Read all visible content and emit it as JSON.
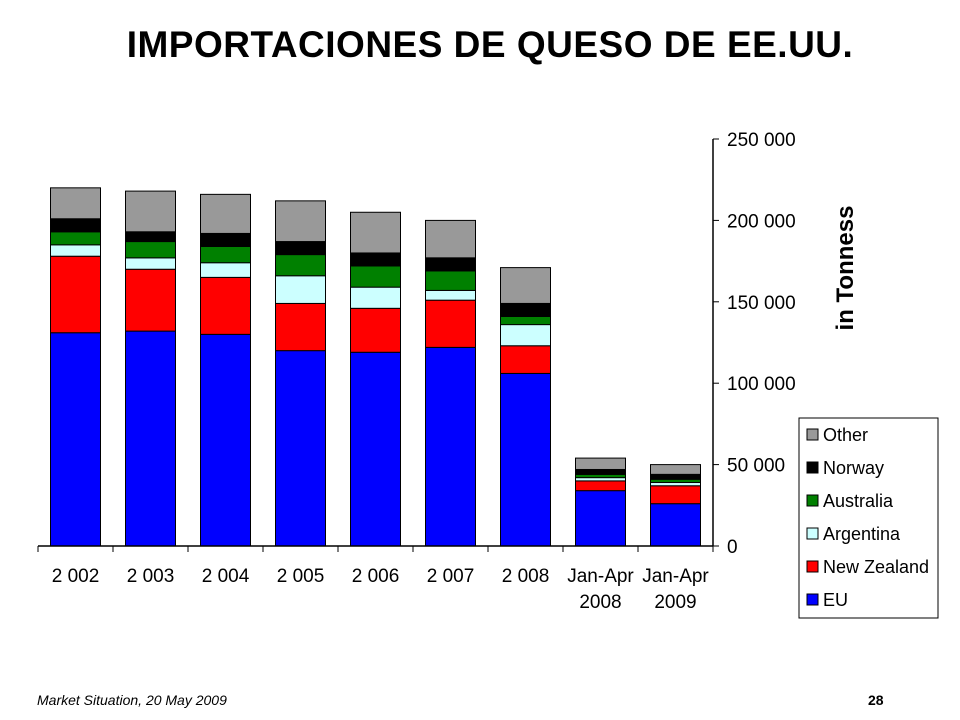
{
  "slide": {
    "title": "IMPORTACIONES DE QUESO DE EE.UU.",
    "footer_left": "Market Situation, 20 May 2009",
    "page_number": "28"
  },
  "chart_data": {
    "type": "bar",
    "stacked": true,
    "title": "",
    "xlabel": "",
    "ylabel": "in Tonness",
    "ylim": [
      0,
      250000
    ],
    "yticks": [
      0,
      50000,
      100000,
      150000,
      200000,
      250000
    ],
    "ytick_labels": [
      "0",
      "50 000",
      "100 000",
      "150 000",
      "200 000",
      "250 000"
    ],
    "y_axis_side": "right",
    "grid": false,
    "legend_position": "bottom-right",
    "categories": [
      [
        "2 002"
      ],
      [
        "2 003"
      ],
      [
        "2 004"
      ],
      [
        "2 005"
      ],
      [
        "2 006"
      ],
      [
        "2 007"
      ],
      [
        "2 008"
      ],
      [
        "Jan-Apr",
        "2008"
      ],
      [
        "Jan-Apr",
        "2009"
      ]
    ],
    "series": [
      {
        "name": "EU",
        "color": "#0000ff",
        "values": [
          131000,
          132000,
          130000,
          120000,
          119000,
          122000,
          106000,
          34000,
          26000
        ]
      },
      {
        "name": "New Zealand",
        "color": "#ff0000",
        "values": [
          47000,
          38000,
          35000,
          29000,
          27000,
          29000,
          17000,
          6000,
          11000
        ]
      },
      {
        "name": "Argentina",
        "color": "#ccffff",
        "values": [
          7000,
          7000,
          9000,
          17000,
          13000,
          6000,
          13000,
          2000,
          2000
        ]
      },
      {
        "name": "Australia",
        "color": "#008000",
        "values": [
          8000,
          10000,
          10000,
          13000,
          13000,
          12000,
          5000,
          2000,
          2000
        ]
      },
      {
        "name": "Norway",
        "color": "#000000",
        "values": [
          8000,
          6000,
          8000,
          8000,
          8000,
          8000,
          8000,
          3000,
          3000
        ]
      },
      {
        "name": "Other",
        "color": "#999999",
        "values": [
          19000,
          25000,
          24000,
          25000,
          25000,
          23000,
          22000,
          7000,
          6000
        ]
      }
    ]
  }
}
